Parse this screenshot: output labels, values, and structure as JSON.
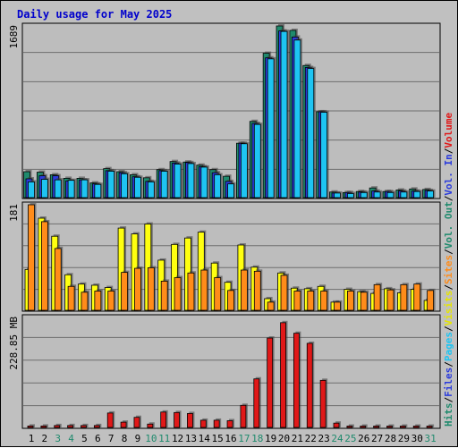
{
  "title": "Daily usage for May 2025",
  "colors": {
    "background": "#c0c0c0",
    "plot": "#bdbdbd",
    "grid": "#6f6f6f",
    "title": "#0000cc",
    "hits": "#1f8a6d",
    "files": "#2a3bdc",
    "pages": "#1ec4f2",
    "visits": "#ffff10",
    "sites": "#ff8c1a",
    "volume": "#e01818",
    "weekend_day": "#1f8a6d"
  },
  "chart_data": [
    {
      "type": "bar",
      "panel": "hits-files-pages",
      "ylabel_value": "1689",
      "ylim": [
        0,
        1689
      ],
      "categories": [
        "1",
        "2",
        "3",
        "4",
        "5",
        "6",
        "7",
        "8",
        "9",
        "10",
        "11",
        "12",
        "13",
        "14",
        "15",
        "16",
        "17",
        "18",
        "19",
        "20",
        "21",
        "22",
        "23",
        "24",
        "25",
        "26",
        "27",
        "28",
        "29",
        "30",
        "31"
      ],
      "series": [
        {
          "name": "Hits",
          "values": [
            255,
            250,
            225,
            190,
            190,
            145,
            285,
            255,
            225,
            195,
            275,
            355,
            350,
            320,
            275,
            210,
            535,
            750,
            1420,
            1689,
            1645,
            1300,
            845,
            55,
            50,
            60,
            95,
            60,
            75,
            85,
            80
          ]
        },
        {
          "name": "Files",
          "values": [
            185,
            215,
            215,
            165,
            175,
            135,
            265,
            245,
            205,
            160,
            265,
            340,
            345,
            305,
            245,
            160,
            535,
            730,
            1375,
            1640,
            1580,
            1280,
            845,
            45,
            50,
            55,
            65,
            60,
            65,
            65,
            70
          ]
        },
        {
          "name": "Pages",
          "values": [
            155,
            180,
            175,
            170,
            175,
            130,
            260,
            235,
            200,
            155,
            260,
            330,
            335,
            300,
            225,
            135,
            530,
            720,
            1365,
            1635,
            1550,
            1270,
            840,
            45,
            40,
            50,
            55,
            50,
            55,
            60,
            65
          ]
        }
      ],
      "legend": [
        "Hits",
        "Files",
        "Pages"
      ]
    },
    {
      "type": "bar",
      "panel": "visits-sites",
      "ylabel_value": "181",
      "ylim": [
        0,
        181
      ],
      "categories": [
        "1",
        "2",
        "3",
        "4",
        "5",
        "6",
        "7",
        "8",
        "9",
        "10",
        "11",
        "12",
        "13",
        "14",
        "15",
        "16",
        "17",
        "18",
        "19",
        "20",
        "21",
        "22",
        "23",
        "24",
        "25",
        "26",
        "27",
        "28",
        "29",
        "30",
        "31"
      ],
      "series": [
        {
          "name": "Visits",
          "values": [
            70,
            158,
            127,
            61,
            45,
            43,
            39,
            141,
            131,
            148,
            86,
            113,
            124,
            134,
            81,
            48,
            112,
            74,
            20,
            64,
            38,
            37,
            41,
            14,
            36,
            32,
            29,
            37,
            30,
            36,
            17
          ]
        },
        {
          "name": "Sites",
          "values": [
            181,
            152,
            106,
            41,
            31,
            33,
            33,
            65,
            72,
            73,
            50,
            56,
            64,
            69,
            56,
            34,
            69,
            67,
            14,
            60,
            33,
            33,
            33,
            14,
            33,
            31,
            44,
            35,
            44,
            45,
            34
          ]
        }
      ],
      "legend": [
        "Visits",
        "Sites"
      ]
    },
    {
      "type": "bar",
      "panel": "volume",
      "ylabel_value": "228.85 MB",
      "ylim": [
        0,
        228.85
      ],
      "categories": [
        "1",
        "2",
        "3",
        "4",
        "5",
        "6",
        "7",
        "8",
        "9",
        "10",
        "11",
        "12",
        "13",
        "14",
        "15",
        "16",
        "17",
        "18",
        "19",
        "20",
        "21",
        "22",
        "23",
        "24",
        "25",
        "26",
        "27",
        "28",
        "29",
        "30",
        "31"
      ],
      "series": [
        {
          "name": "Volume",
          "values": [
            3,
            3,
            4,
            4,
            4,
            4,
            30,
            11,
            21,
            7,
            32,
            31,
            29,
            15,
            15,
            14,
            46,
            101,
            186,
            218,
            196,
            175,
            98,
            9,
            2,
            2,
            2,
            2,
            2,
            2,
            2
          ]
        }
      ],
      "legend": [
        "Volume",
        "Vol. In",
        "Vol. Out"
      ]
    }
  ],
  "legend_right": [
    {
      "text": "Hits",
      "color": "#1f8a6d"
    },
    {
      "text": "/",
      "color": "#000000"
    },
    {
      "text": "Files",
      "color": "#2a3bdc"
    },
    {
      "text": "/",
      "color": "#000000"
    },
    {
      "text": "Pages",
      "color": "#1ec4f2"
    },
    {
      "text": "/",
      "color": "#000000"
    },
    {
      "text": "Visits",
      "color": "#e6e600"
    },
    {
      "text": "/",
      "color": "#000000"
    },
    {
      "text": "Sites",
      "color": "#ff8c1a"
    },
    {
      "text": "/",
      "color": "#000000"
    },
    {
      "text": "Vol. Out",
      "color": "#1f8a6d"
    },
    {
      "text": "/",
      "color": "#000000"
    },
    {
      "text": "Vol. In",
      "color": "#2a3bdc"
    },
    {
      "text": "/",
      "color": "#000000"
    },
    {
      "text": "Volume",
      "color": "#e01818"
    }
  ],
  "weekend_days": [
    "3",
    "4",
    "10",
    "11",
    "17",
    "18",
    "24",
    "25",
    "31"
  ]
}
